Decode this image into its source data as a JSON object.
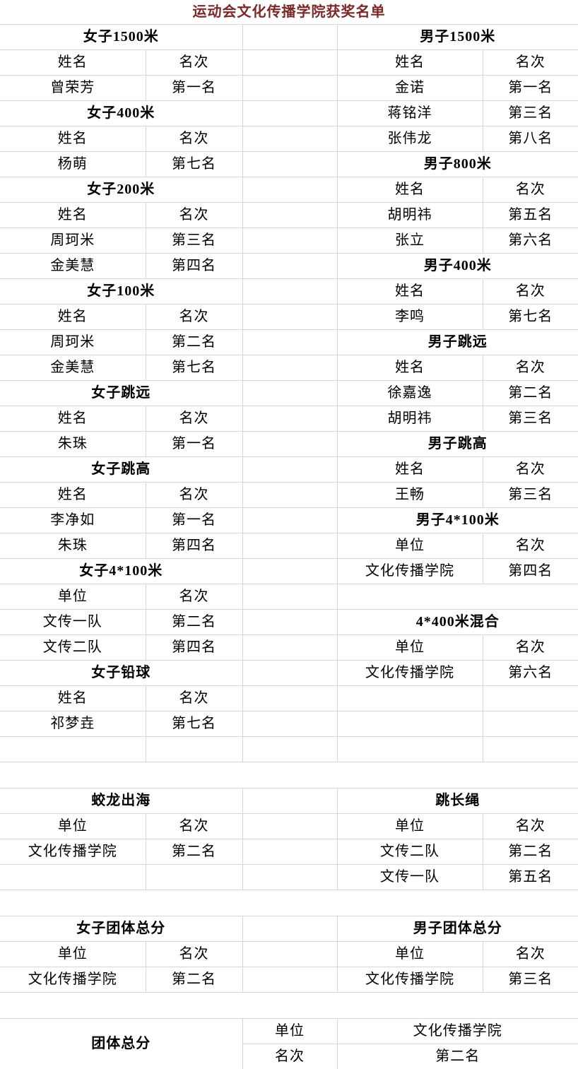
{
  "title": "运动会文化传播学院获奖名单",
  "colors": {
    "title_text": "#7a2828",
    "gridline": "#d6d6d6",
    "body_text": "#000000",
    "background": "#ffffff"
  },
  "rows": [
    {
      "cells": [
        {
          "t": "女子1500米",
          "c": 2,
          "k": "h"
        },
        {
          "t": "",
          "c": 1,
          "k": "e"
        },
        {
          "t": "男子1500米",
          "c": 2,
          "k": "h"
        }
      ]
    },
    {
      "cells": [
        {
          "t": "姓名",
          "k": "ch"
        },
        {
          "t": "名次",
          "k": "ch"
        },
        {
          "t": "",
          "k": "e"
        },
        {
          "t": "姓名",
          "k": "ch"
        },
        {
          "t": "名次",
          "k": "ch"
        }
      ]
    },
    {
      "cells": [
        {
          "t": "曾荣芳",
          "k": "d"
        },
        {
          "t": "第一名",
          "k": "d"
        },
        {
          "t": "",
          "k": "e"
        },
        {
          "t": "金诺",
          "k": "d"
        },
        {
          "t": "第一名",
          "k": "d"
        }
      ]
    },
    {
      "cells": [
        {
          "t": "女子400米",
          "c": 2,
          "k": "h"
        },
        {
          "t": "",
          "k": "e"
        },
        {
          "t": "蒋铭洋",
          "k": "d"
        },
        {
          "t": "第三名",
          "k": "d"
        }
      ]
    },
    {
      "cells": [
        {
          "t": "姓名",
          "k": "ch"
        },
        {
          "t": "名次",
          "k": "ch"
        },
        {
          "t": "",
          "k": "e"
        },
        {
          "t": "张伟龙",
          "k": "d"
        },
        {
          "t": "第八名",
          "k": "d"
        }
      ]
    },
    {
      "cells": [
        {
          "t": "杨萌",
          "k": "d"
        },
        {
          "t": "第七名",
          "k": "d"
        },
        {
          "t": "",
          "k": "e"
        },
        {
          "t": "男子800米",
          "c": 2,
          "k": "h"
        }
      ]
    },
    {
      "cells": [
        {
          "t": "女子200米",
          "c": 2,
          "k": "h"
        },
        {
          "t": "",
          "k": "e"
        },
        {
          "t": "姓名",
          "k": "ch"
        },
        {
          "t": "名次",
          "k": "ch"
        }
      ]
    },
    {
      "cells": [
        {
          "t": "姓名",
          "k": "ch"
        },
        {
          "t": "名次",
          "k": "ch"
        },
        {
          "t": "",
          "k": "e"
        },
        {
          "t": "胡明祎",
          "k": "d"
        },
        {
          "t": "第五名",
          "k": "d"
        }
      ]
    },
    {
      "cells": [
        {
          "t": "周珂米",
          "k": "d"
        },
        {
          "t": "第三名",
          "k": "d"
        },
        {
          "t": "",
          "k": "e"
        },
        {
          "t": "张立",
          "k": "d"
        },
        {
          "t": "第六名",
          "k": "d"
        }
      ]
    },
    {
      "cells": [
        {
          "t": "金美慧",
          "k": "d"
        },
        {
          "t": "第四名",
          "k": "d"
        },
        {
          "t": "",
          "k": "e"
        },
        {
          "t": "男子400米",
          "c": 2,
          "k": "h"
        }
      ]
    },
    {
      "cells": [
        {
          "t": "女子100米",
          "c": 2,
          "k": "h"
        },
        {
          "t": "",
          "k": "e"
        },
        {
          "t": "姓名",
          "k": "ch"
        },
        {
          "t": "名次",
          "k": "ch"
        }
      ]
    },
    {
      "cells": [
        {
          "t": "姓名",
          "k": "ch"
        },
        {
          "t": "名次",
          "k": "ch"
        },
        {
          "t": "",
          "k": "e"
        },
        {
          "t": "李鸣",
          "k": "d"
        },
        {
          "t": "第七名",
          "k": "d"
        }
      ]
    },
    {
      "cells": [
        {
          "t": "周珂米",
          "k": "d"
        },
        {
          "t": "第二名",
          "k": "d"
        },
        {
          "t": "",
          "k": "e"
        },
        {
          "t": "男子跳远",
          "c": 2,
          "k": "h"
        }
      ]
    },
    {
      "cells": [
        {
          "t": "金美慧",
          "k": "d"
        },
        {
          "t": "第七名",
          "k": "d"
        },
        {
          "t": "",
          "k": "e"
        },
        {
          "t": "姓名",
          "k": "ch"
        },
        {
          "t": "名次",
          "k": "ch"
        }
      ]
    },
    {
      "cells": [
        {
          "t": "女子跳远",
          "c": 2,
          "k": "h"
        },
        {
          "t": "",
          "k": "e"
        },
        {
          "t": "徐嘉逸",
          "k": "d"
        },
        {
          "t": "第二名",
          "k": "d"
        }
      ]
    },
    {
      "cells": [
        {
          "t": "姓名",
          "k": "ch"
        },
        {
          "t": "名次",
          "k": "ch"
        },
        {
          "t": "",
          "k": "e"
        },
        {
          "t": "胡明祎",
          "k": "d"
        },
        {
          "t": "第三名",
          "k": "d"
        }
      ]
    },
    {
      "cells": [
        {
          "t": "朱珠",
          "k": "d"
        },
        {
          "t": "第一名",
          "k": "d"
        },
        {
          "t": "",
          "k": "e"
        },
        {
          "t": "男子跳高",
          "c": 2,
          "k": "h"
        }
      ]
    },
    {
      "cells": [
        {
          "t": "女子跳高",
          "c": 2,
          "k": "h"
        },
        {
          "t": "",
          "k": "e"
        },
        {
          "t": "姓名",
          "k": "ch"
        },
        {
          "t": "名次",
          "k": "ch"
        }
      ]
    },
    {
      "cells": [
        {
          "t": "姓名",
          "k": "ch"
        },
        {
          "t": "名次",
          "k": "ch"
        },
        {
          "t": "",
          "k": "e"
        },
        {
          "t": "王畅",
          "k": "d"
        },
        {
          "t": "第三名",
          "k": "d"
        }
      ]
    },
    {
      "cells": [
        {
          "t": "李净如",
          "k": "d"
        },
        {
          "t": "第一名",
          "k": "d"
        },
        {
          "t": "",
          "k": "e"
        },
        {
          "t": "男子4*100米",
          "c": 2,
          "k": "h"
        }
      ]
    },
    {
      "cells": [
        {
          "t": "朱珠",
          "k": "d"
        },
        {
          "t": "第四名",
          "k": "d"
        },
        {
          "t": "",
          "k": "e"
        },
        {
          "t": "单位",
          "k": "ch"
        },
        {
          "t": "名次",
          "k": "ch"
        }
      ]
    },
    {
      "cells": [
        {
          "t": "女子4*100米",
          "c": 2,
          "k": "h"
        },
        {
          "t": "",
          "k": "e"
        },
        {
          "t": "文化传播学院",
          "k": "d"
        },
        {
          "t": "第四名",
          "k": "d"
        }
      ]
    },
    {
      "cells": [
        {
          "t": "单位",
          "k": "ch"
        },
        {
          "t": "名次",
          "k": "ch"
        },
        {
          "t": "",
          "k": "e"
        },
        {
          "t": "",
          "c": 2,
          "k": "e"
        }
      ]
    },
    {
      "cells": [
        {
          "t": "文传一队",
          "k": "d"
        },
        {
          "t": "第二名",
          "k": "d"
        },
        {
          "t": "",
          "k": "e"
        },
        {
          "t": "4*400米混合",
          "c": 2,
          "k": "h"
        }
      ]
    },
    {
      "cells": [
        {
          "t": "文传二队",
          "k": "d"
        },
        {
          "t": "第四名",
          "k": "d"
        },
        {
          "t": "",
          "k": "e"
        },
        {
          "t": "单位",
          "k": "ch"
        },
        {
          "t": "名次",
          "k": "ch"
        }
      ]
    },
    {
      "cells": [
        {
          "t": "女子铅球",
          "c": 2,
          "k": "h"
        },
        {
          "t": "",
          "k": "e"
        },
        {
          "t": "文化传播学院",
          "k": "d"
        },
        {
          "t": "第六名",
          "k": "d"
        }
      ]
    },
    {
      "cells": [
        {
          "t": "姓名",
          "k": "ch"
        },
        {
          "t": "名次",
          "k": "ch"
        },
        {
          "t": "",
          "k": "e"
        },
        {
          "t": "",
          "k": "e"
        },
        {
          "t": "",
          "k": "e"
        }
      ]
    },
    {
      "cells": [
        {
          "t": "祁梦垚",
          "k": "d"
        },
        {
          "t": "第七名",
          "k": "d"
        },
        {
          "t": "",
          "k": "e"
        },
        {
          "t": "",
          "k": "e"
        },
        {
          "t": "",
          "k": "e"
        }
      ]
    },
    {
      "cells": [
        {
          "t": "",
          "k": "e"
        },
        {
          "t": "",
          "k": "e"
        },
        {
          "t": "",
          "k": "e"
        },
        {
          "t": "",
          "k": "e"
        },
        {
          "t": "",
          "k": "e"
        }
      ]
    },
    {
      "cells": [
        {
          "t": "",
          "c": 5,
          "k": "sp"
        }
      ]
    },
    {
      "cells": [
        {
          "t": "蛟龙出海",
          "c": 2,
          "k": "h"
        },
        {
          "t": "",
          "k": "e"
        },
        {
          "t": "跳长绳",
          "c": 2,
          "k": "h"
        }
      ]
    },
    {
      "cells": [
        {
          "t": "单位",
          "k": "ch"
        },
        {
          "t": "名次",
          "k": "ch"
        },
        {
          "t": "",
          "k": "e"
        },
        {
          "t": "单位",
          "k": "ch"
        },
        {
          "t": "名次",
          "k": "ch"
        }
      ]
    },
    {
      "cells": [
        {
          "t": "文化传播学院",
          "k": "d"
        },
        {
          "t": "第二名",
          "k": "d"
        },
        {
          "t": "",
          "k": "e"
        },
        {
          "t": "文传二队",
          "k": "d"
        },
        {
          "t": "第二名",
          "k": "d"
        }
      ]
    },
    {
      "cells": [
        {
          "t": "",
          "k": "e"
        },
        {
          "t": "",
          "k": "e"
        },
        {
          "t": "",
          "k": "e"
        },
        {
          "t": "文传一队",
          "k": "d"
        },
        {
          "t": "第五名",
          "k": "d"
        }
      ]
    },
    {
      "cells": [
        {
          "t": "",
          "c": 5,
          "k": "sp"
        }
      ]
    },
    {
      "cells": [
        {
          "t": "女子团体总分",
          "c": 2,
          "k": "h"
        },
        {
          "t": "",
          "k": "e"
        },
        {
          "t": "男子团体总分",
          "c": 2,
          "k": "h"
        }
      ]
    },
    {
      "cells": [
        {
          "t": "单位",
          "k": "ch"
        },
        {
          "t": "名次",
          "k": "ch"
        },
        {
          "t": "",
          "k": "e"
        },
        {
          "t": "单位",
          "k": "ch"
        },
        {
          "t": "名次",
          "k": "ch"
        }
      ]
    },
    {
      "cells": [
        {
          "t": "文化传播学院",
          "k": "d"
        },
        {
          "t": "第二名",
          "k": "d"
        },
        {
          "t": "",
          "k": "e"
        },
        {
          "t": "文化传播学院",
          "k": "d"
        },
        {
          "t": "第三名",
          "k": "d"
        }
      ]
    },
    {
      "cells": [
        {
          "t": "",
          "c": 5,
          "k": "sp"
        }
      ]
    },
    {
      "cells": [
        {
          "t": "团体总分",
          "c": 2,
          "rs": 2,
          "k": "h"
        },
        {
          "t": "单位",
          "k": "ch"
        },
        {
          "t": "文化传播学院",
          "c": 2,
          "k": "d"
        }
      ]
    },
    {
      "cells": [
        {
          "t": "名次",
          "k": "ch"
        },
        {
          "t": "第二名",
          "c": 2,
          "k": "d"
        }
      ]
    }
  ]
}
